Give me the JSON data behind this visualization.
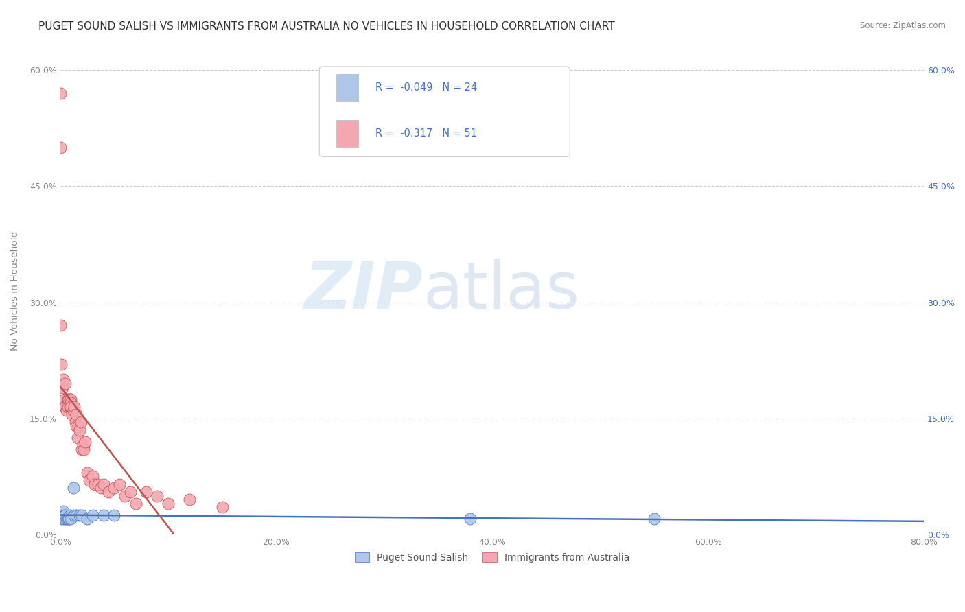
{
  "title": "PUGET SOUND SALISH VS IMMIGRANTS FROM AUSTRALIA NO VEHICLES IN HOUSEHOLD CORRELATION CHART",
  "source_text": "Source: ZipAtlas.com",
  "ylabel_label": "No Vehicles in Household",
  "legend1_label": "Puget Sound Salish",
  "legend2_label": "Immigrants from Australia",
  "r1": -0.049,
  "n1": 24,
  "r2": -0.317,
  "n2": 51,
  "color1": "#aec6e8",
  "color2": "#f4a7b0",
  "trendline1_color": "#4472c4",
  "trendline2_color": "#c0504d",
  "watermark_zip": "ZIP",
  "watermark_atlas": "atlas",
  "background_color": "#ffffff",
  "grid_color": "#cccccc",
  "scatter1_x": [
    0.0,
    0.001,
    0.002,
    0.003,
    0.003,
    0.004,
    0.005,
    0.005,
    0.006,
    0.007,
    0.008,
    0.009,
    0.01,
    0.012,
    0.013,
    0.015,
    0.018,
    0.02,
    0.025,
    0.03,
    0.04,
    0.05,
    0.38,
    0.55
  ],
  "scatter1_y": [
    0.025,
    0.02,
    0.025,
    0.02,
    0.03,
    0.025,
    0.02,
    0.025,
    0.02,
    0.02,
    0.02,
    0.025,
    0.02,
    0.06,
    0.025,
    0.025,
    0.025,
    0.025,
    0.02,
    0.025,
    0.025,
    0.025,
    0.02,
    0.02
  ],
  "scatter2_x": [
    0.0,
    0.0,
    0.0,
    0.001,
    0.002,
    0.003,
    0.004,
    0.004,
    0.005,
    0.005,
    0.006,
    0.007,
    0.007,
    0.008,
    0.009,
    0.009,
    0.01,
    0.01,
    0.01,
    0.011,
    0.012,
    0.013,
    0.014,
    0.015,
    0.015,
    0.016,
    0.017,
    0.018,
    0.019,
    0.02,
    0.021,
    0.022,
    0.023,
    0.025,
    0.027,
    0.03,
    0.032,
    0.035,
    0.038,
    0.04,
    0.045,
    0.05,
    0.055,
    0.06,
    0.065,
    0.07,
    0.08,
    0.09,
    0.1,
    0.12,
    0.15
  ],
  "scatter2_y": [
    0.57,
    0.5,
    0.27,
    0.22,
    0.19,
    0.2,
    0.175,
    0.165,
    0.195,
    0.165,
    0.16,
    0.165,
    0.175,
    0.175,
    0.175,
    0.165,
    0.175,
    0.17,
    0.165,
    0.155,
    0.16,
    0.165,
    0.145,
    0.155,
    0.14,
    0.125,
    0.14,
    0.135,
    0.145,
    0.11,
    0.115,
    0.11,
    0.12,
    0.08,
    0.07,
    0.075,
    0.065,
    0.065,
    0.06,
    0.065,
    0.055,
    0.06,
    0.065,
    0.05,
    0.055,
    0.04,
    0.055,
    0.05,
    0.04,
    0.045,
    0.035
  ],
  "xlim": [
    0.0,
    0.8
  ],
  "ylim": [
    0.0,
    0.63
  ],
  "xtick_vals": [
    0.0,
    0.2,
    0.4,
    0.6,
    0.8
  ],
  "ytick_vals": [
    0.0,
    0.15,
    0.3,
    0.45,
    0.6
  ],
  "title_fontsize": 11,
  "axis_fontsize": 10,
  "tick_fontsize": 9
}
